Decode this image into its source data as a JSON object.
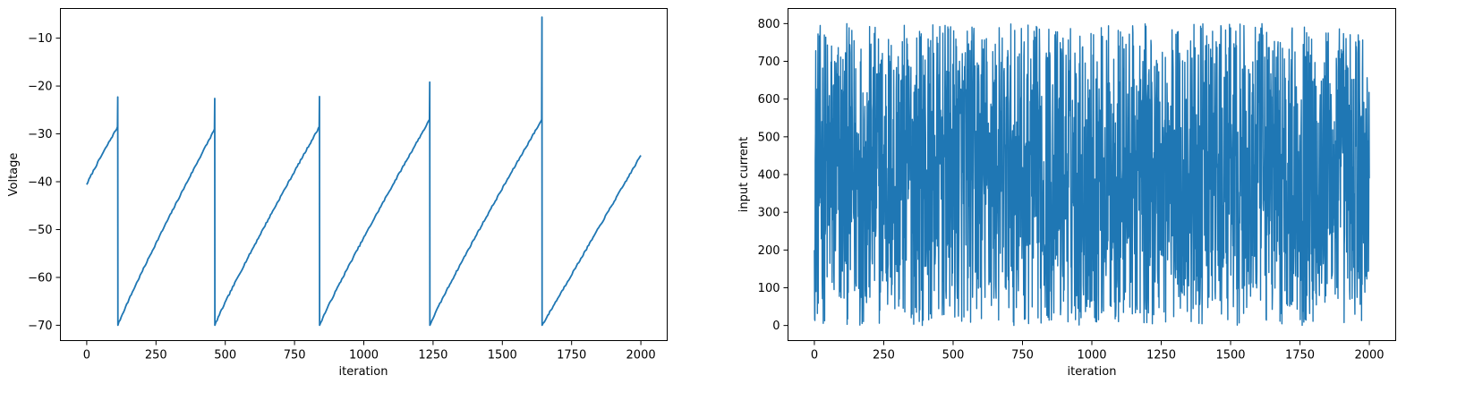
{
  "chart_data": [
    {
      "type": "line",
      "xlabel": "iteration",
      "ylabel": "Voltage",
      "xlim": [
        -95,
        2095
      ],
      "ylim": [
        -73.2,
        -3.8
      ],
      "xticks": [
        0,
        250,
        500,
        750,
        1000,
        1250,
        1500,
        1750,
        2000
      ],
      "yticks": [
        -70,
        -60,
        -50,
        -40,
        -30,
        -20,
        -10
      ],
      "grid": false,
      "color": "#1f77b4",
      "series": [
        {
          "model": "integrate-and-fire",
          "x_start": 0,
          "x_end": 2000,
          "start_value": -40.6,
          "reset_value": -70,
          "end_value": -34.5,
          "spike_iterations": [
            112,
            462,
            840,
            1238,
            1643
          ],
          "spike_peaks": [
            -22.3,
            -22.6,
            -22.2,
            -19.2,
            -5.6
          ],
          "pre_spike_values": [
            -28.5,
            -29.0,
            -28.5,
            -27.0,
            -27.0
          ]
        }
      ]
    },
    {
      "type": "line",
      "xlabel": "iteration",
      "ylabel": "input current",
      "xlim": [
        -95,
        2095
      ],
      "ylim": [
        -40,
        840
      ],
      "xticks": [
        0,
        250,
        500,
        750,
        1000,
        1250,
        1500,
        1750,
        2000
      ],
      "yticks": [
        0,
        100,
        200,
        300,
        400,
        500,
        600,
        700,
        800
      ],
      "grid": false,
      "color": "#1f77b4",
      "series": [
        {
          "model": "uniform-random",
          "x_start": 0,
          "x_end": 2000,
          "min": 0,
          "max": 800,
          "first_value": 200,
          "last_value": 390
        }
      ]
    }
  ]
}
